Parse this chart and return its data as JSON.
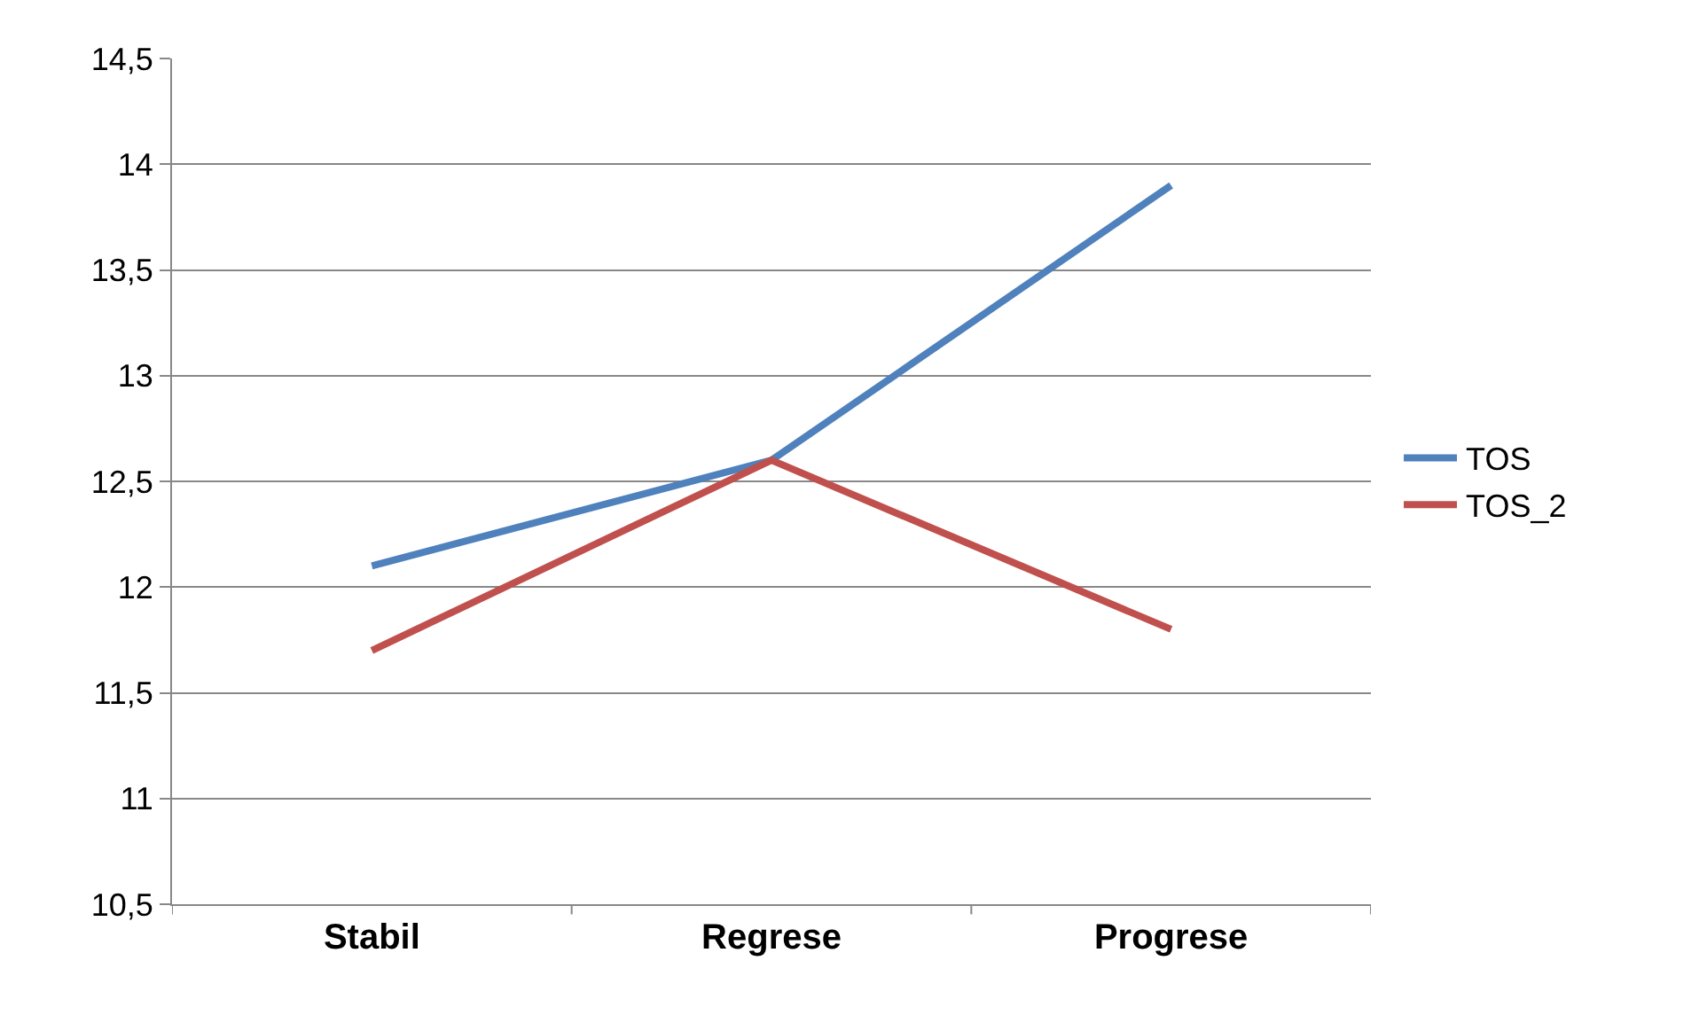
{
  "chart_data": {
    "type": "line",
    "categories": [
      "Stabil",
      "Regrese",
      "Progrese"
    ],
    "series": [
      {
        "name": "TOS",
        "color": "#4f81bd",
        "values": [
          12.1,
          12.6,
          13.9
        ]
      },
      {
        "name": "TOS_2",
        "color": "#c0504d",
        "values": [
          11.7,
          12.6,
          11.8
        ]
      }
    ],
    "ylim": [
      10.5,
      14.5
    ],
    "yticks": [
      {
        "value": 10.5,
        "label": "10,5"
      },
      11,
      {
        "value": 11.5,
        "label": "11,5"
      },
      12,
      {
        "value": 12.5,
        "label": "12,5"
      },
      13,
      {
        "value": 13.5,
        "label": "13,5"
      },
      14,
      {
        "value": 14.5,
        "label": "14,5"
      }
    ],
    "grid": "y",
    "legend": "right",
    "marker": "none",
    "line_style": "solid"
  }
}
